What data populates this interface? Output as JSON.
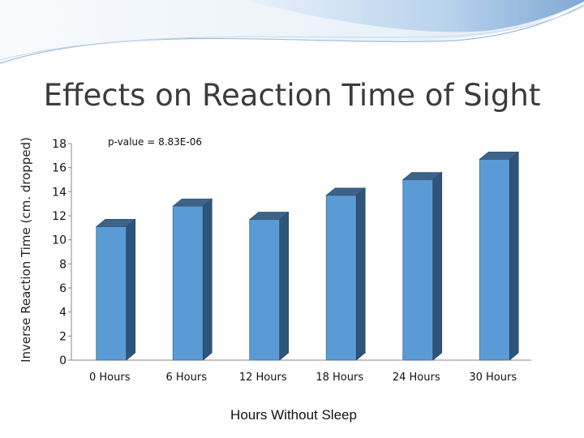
{
  "slide": {
    "title": "Effects on Reaction Time of Sight",
    "colors": {
      "bar_front": "#5b9bd5",
      "bar_side": "#2e5479",
      "bar_top": "#3d6389",
      "header_wave": "#aecbe8"
    }
  },
  "chart_data": {
    "type": "bar",
    "title": "",
    "xlabel": "Hours Without Sleep",
    "ylabel": "Inverse Reaction Time (cm. dropped)",
    "categories": [
      "0 Hours",
      "6 Hours",
      "12 Hours",
      "18 Hours",
      "24 Hours",
      "30 Hours"
    ],
    "values": [
      11.1,
      12.8,
      11.7,
      13.7,
      15.0,
      16.7
    ],
    "ylim": [
      0,
      18
    ],
    "yticks": [
      0,
      2,
      4,
      6,
      8,
      10,
      12,
      14,
      16,
      18
    ],
    "annotation": "p-value = 8.83E-06",
    "grid": false,
    "legend": "none",
    "style": "3d-column"
  }
}
